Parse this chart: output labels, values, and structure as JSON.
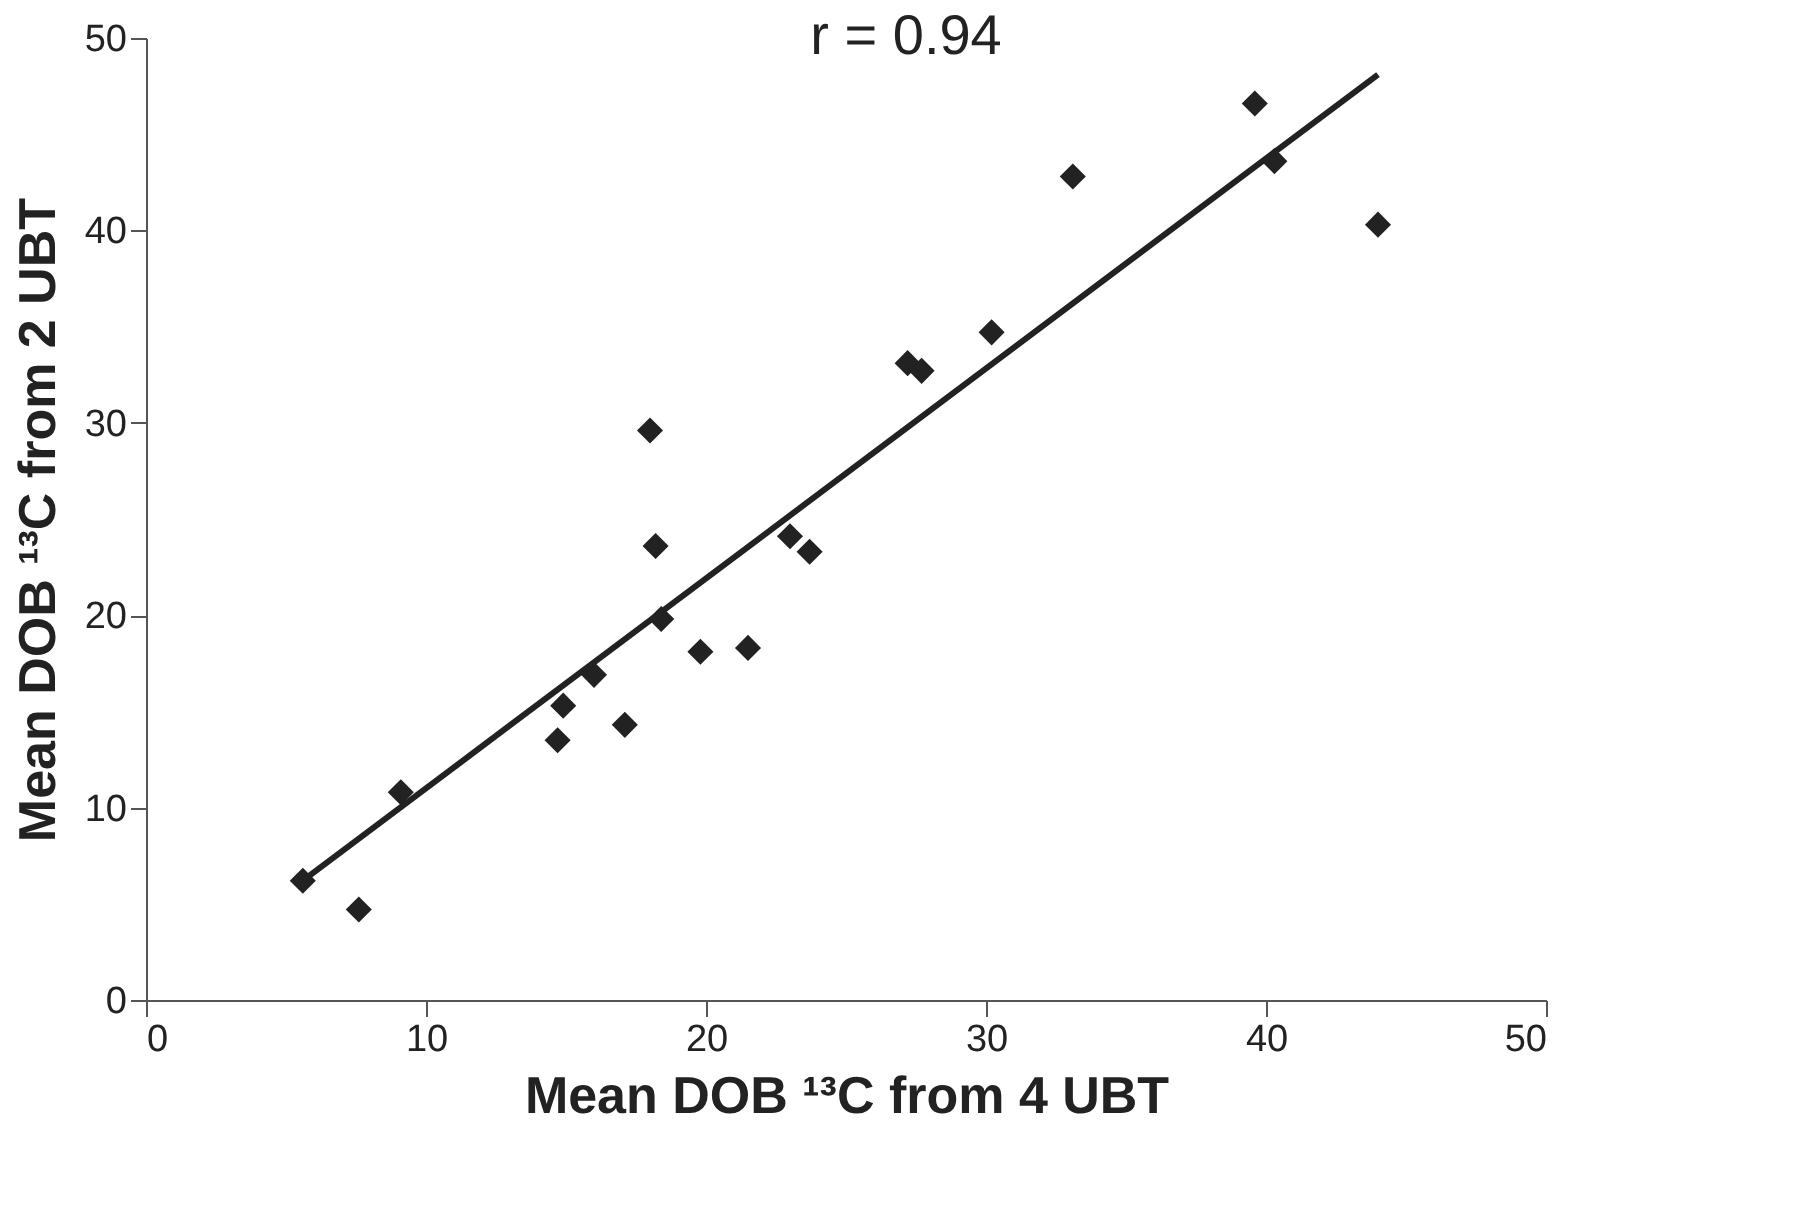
{
  "chart_data": {
    "type": "scatter",
    "xlabel": "Mean DOB ¹³C from 4 UBT",
    "ylabel": "Mean DOB ¹³C from 2 UBT",
    "annotations": [
      "r = 0.94"
    ],
    "xlim": [
      0,
      50
    ],
    "ylim": [
      0,
      50
    ],
    "xticks": [
      0,
      10,
      20,
      30,
      40,
      50
    ],
    "yticks": [
      0,
      10,
      20,
      30,
      40,
      50
    ],
    "grid": false,
    "series": [
      {
        "marker": "diamond",
        "color": "#222222",
        "x": [
          5.6,
          7.6,
          9.1,
          14.7,
          14.9,
          16.0,
          17.1,
          18.0,
          18.2,
          18.4,
          19.8,
          21.5,
          23.0,
          23.7,
          27.2,
          27.7,
          30.2,
          33.1,
          39.6,
          40.3,
          44.0
        ],
        "values": [
          6.2,
          4.7,
          10.8,
          13.5,
          15.3,
          16.9,
          14.3,
          29.6,
          23.6,
          19.8,
          18.1,
          18.3,
          24.1,
          23.3,
          33.1,
          32.7,
          34.7,
          42.8,
          46.6,
          43.6,
          40.3
        ]
      },
      {
        "type": "line",
        "color": "#222222",
        "line_style": "solid",
        "x": [
          5.6,
          44.0
        ],
        "values": [
          6.2,
          48.1
        ]
      }
    ]
  }
}
